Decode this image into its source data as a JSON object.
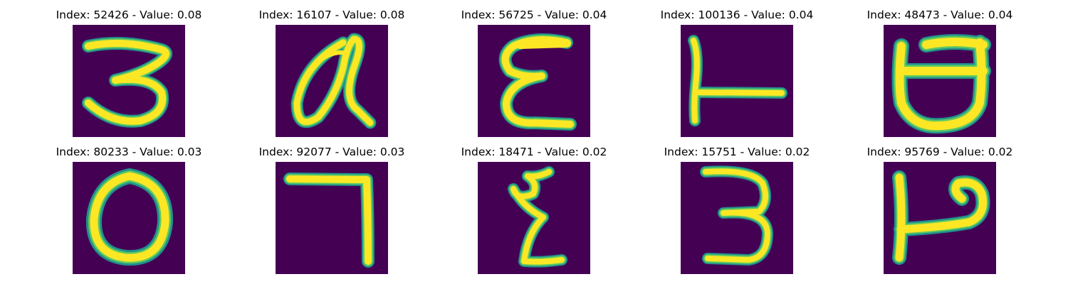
{
  "figure": {
    "panels": [
      {
        "id": "p0",
        "title": "Index: 52426 - Value: 0.08",
        "index": 52426,
        "value": 0.08,
        "glyph": "3"
      },
      {
        "id": "p1",
        "title": "Index: 16107 - Value: 0.08",
        "index": 16107,
        "value": 0.08,
        "glyph": "a"
      },
      {
        "id": "p2",
        "title": "Index: 56725 - Value: 0.04",
        "index": 56725,
        "value": 0.04,
        "glyph": "epsilon"
      },
      {
        "id": "p3",
        "title": "Index: 100136 - Value: 0.04",
        "index": 100136,
        "value": 0.04,
        "glyph": "L-rotated"
      },
      {
        "id": "p4",
        "title": "Index: 48473 - Value: 0.04",
        "index": 48473,
        "value": 0.04,
        "glyph": "d-flipped"
      },
      {
        "id": "p5",
        "title": "Index: 80233 - Value: 0.03",
        "index": 80233,
        "value": 0.03,
        "glyph": "O"
      },
      {
        "id": "p6",
        "title": "Index: 92077 - Value: 0.03",
        "index": 92077,
        "value": 0.03,
        "glyph": "7"
      },
      {
        "id": "p7",
        "title": "Index: 18471 - Value: 0.02",
        "index": 18471,
        "value": 0.02,
        "glyph": "sigma"
      },
      {
        "id": "p8",
        "title": "Index: 15751 - Value: 0.02",
        "index": 15751,
        "value": 0.02,
        "glyph": "3"
      },
      {
        "id": "p9",
        "title": "Index: 95769 - Value: 0.02",
        "index": 95769,
        "value": 0.02,
        "glyph": "h-rotated"
      }
    ],
    "colors": {
      "background": "#440154",
      "edge": "#21918c",
      "mid": "#5ec962",
      "stroke": "#fde725"
    }
  }
}
